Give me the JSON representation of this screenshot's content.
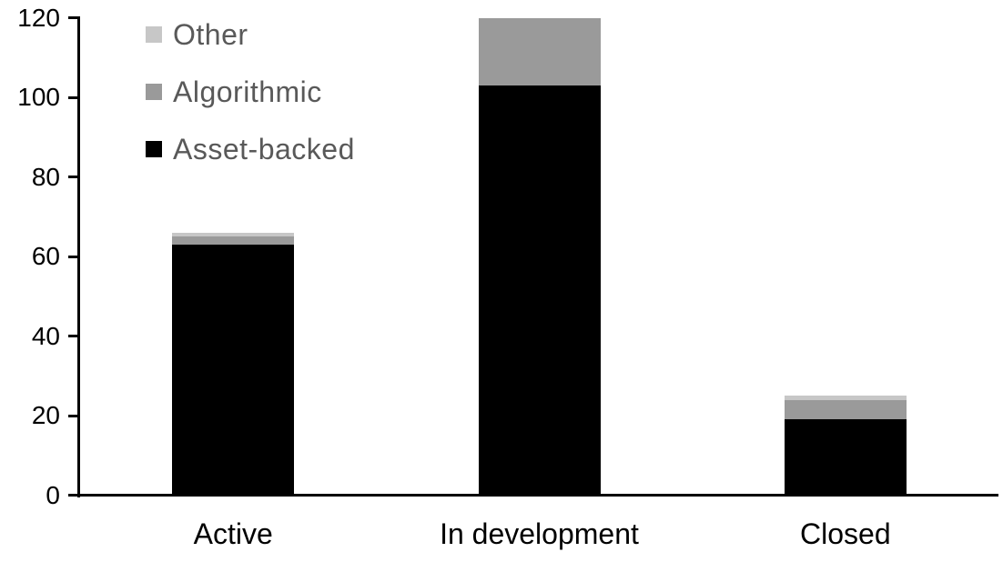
{
  "chart_data": {
    "type": "bar",
    "stacked": true,
    "title": "",
    "xlabel": "",
    "ylabel": "",
    "categories": [
      "Active",
      "In development",
      "Closed"
    ],
    "series": [
      {
        "name": "Asset-backed",
        "color": "#000000",
        "values": [
          63,
          103,
          19
        ]
      },
      {
        "name": "Algorithmic",
        "color": "#9a9a9a",
        "values": [
          2,
          17,
          5
        ]
      },
      {
        "name": "Other",
        "color": "#c7c7c7",
        "values": [
          1,
          0,
          1
        ]
      }
    ],
    "ylim": [
      0,
      120
    ],
    "yticks": [
      0,
      20,
      40,
      60,
      80,
      100,
      120
    ],
    "grid": false,
    "legend": {
      "position": "top-left-inside",
      "order": [
        "Other",
        "Algorithmic",
        "Asset-backed"
      ],
      "text_color": "#595959"
    },
    "axis_color": "#000000"
  }
}
